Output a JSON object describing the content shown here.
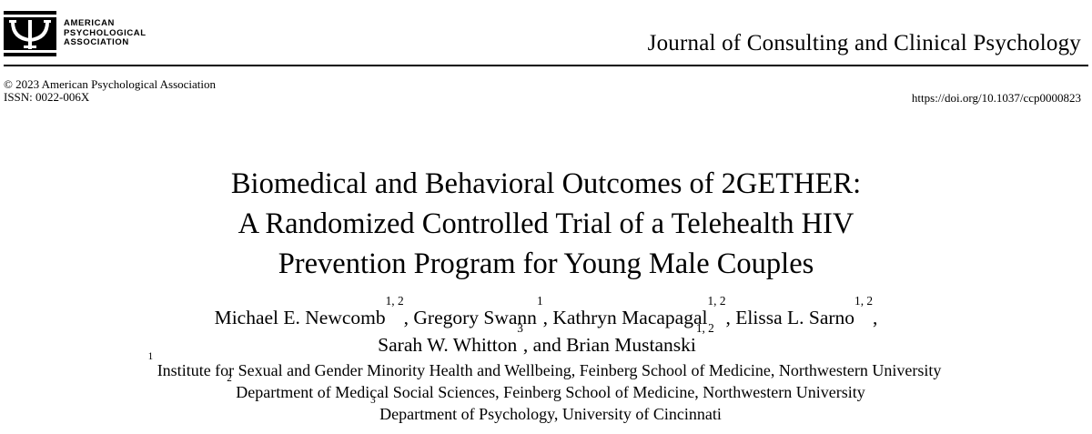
{
  "publisher": {
    "logo_lines": [
      "AMERICAN",
      "PSYCHOLOGICAL",
      "ASSOCIATION"
    ]
  },
  "journal": {
    "title": "Journal of Consulting and Clinical Psychology"
  },
  "meta": {
    "copyright": "© 2023 American Psychological Association",
    "issn": "ISSN: 0022-006X",
    "doi": "https://doi.org/10.1037/ccp0000823"
  },
  "article": {
    "title_lines": [
      "Biomedical and Behavioral Outcomes of 2GETHER:",
      "A Randomized Controlled Trial of a Telehealth HIV",
      "Prevention Program for Young Male Couples"
    ]
  },
  "authors": [
    {
      "name": "Michael E. Newcomb",
      "sup": "1, 2",
      "sep": ", "
    },
    {
      "name": "Gregory Swann",
      "sup": "1",
      "sep": ", "
    },
    {
      "name": "Kathryn Macapagal",
      "sup": "1, 2",
      "sep": ", "
    },
    {
      "name": "Elissa L. Sarno",
      "sup": "1, 2",
      "sep": ","
    },
    {
      "name": "Sarah W. Whitton",
      "sup": "3",
      "sep": ", and "
    },
    {
      "name": "Brian Mustanski",
      "sup": "1, 2",
      "sep": ""
    }
  ],
  "affiliations": [
    {
      "num": "1",
      "text": "Institute for Sexual and Gender Minority Health and Wellbeing, Feinberg School of Medicine, Northwestern University"
    },
    {
      "num": "2",
      "text": "Department of Medical Social Sciences, Feinberg School of Medicine, Northwestern University"
    },
    {
      "num": "3",
      "text": "Department of Psychology, University of Cincinnati"
    }
  ]
}
